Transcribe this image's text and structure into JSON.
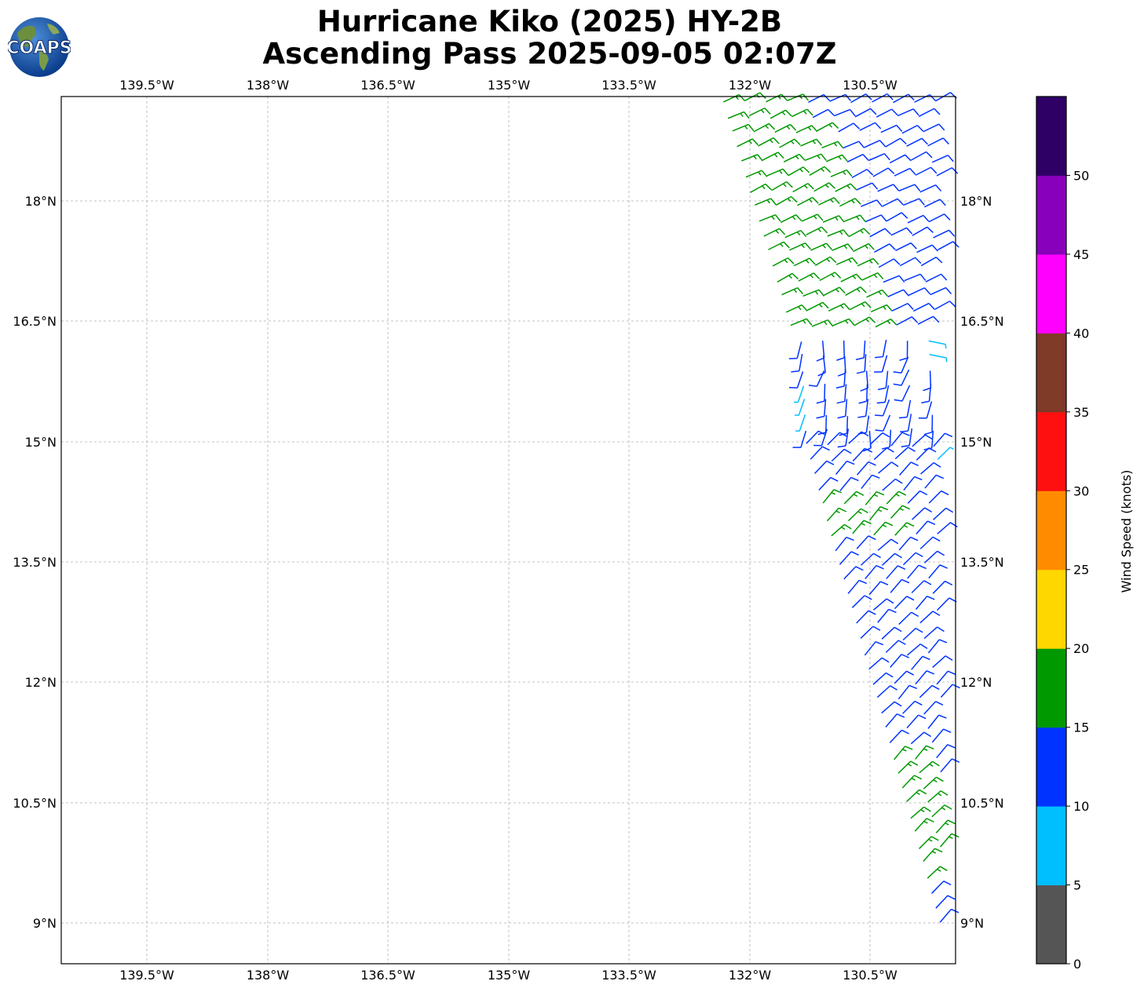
{
  "title_line1": "Hurricane Kiko (2025) HY-2B",
  "title_line2": "Ascending Pass 2025-09-05 02:07Z",
  "logo_text": "COAPS",
  "map": {
    "lon_labels": [
      "139.5°W",
      "138°W",
      "136.5°W",
      "135°W",
      "133.5°W",
      "132°W",
      "130.5°W"
    ],
    "lat_labels": [
      "18°N",
      "16.5°N",
      "15°N",
      "13.5°N",
      "12°N",
      "10.5°N",
      "9°N"
    ],
    "grid": true
  },
  "colorbar": {
    "label": "Wind Speed (knots)",
    "tick_labels": [
      "0",
      "5",
      "10",
      "15",
      "20",
      "25",
      "30",
      "35",
      "40",
      "45",
      "50"
    ],
    "bins": [
      {
        "range": [
          0,
          5
        ],
        "color": "#555555"
      },
      {
        "range": [
          5,
          10
        ],
        "color": "#00bfff"
      },
      {
        "range": [
          10,
          15
        ],
        "color": "#0033ff"
      },
      {
        "range": [
          15,
          20
        ],
        "color": "#009900"
      },
      {
        "range": [
          20,
          25
        ],
        "color": "#ffd700"
      },
      {
        "range": [
          25,
          30
        ],
        "color": "#ff8c00"
      },
      {
        "range": [
          30,
          35
        ],
        "color": "#ff1010"
      },
      {
        "range": [
          35,
          40
        ],
        "color": "#7f3a28"
      },
      {
        "range": [
          40,
          45
        ],
        "color": "#ff00ff"
      },
      {
        "range": [
          45,
          50
        ],
        "color": "#8800bb"
      },
      {
        "range": [
          50,
          55
        ],
        "color": "#2e0066"
      }
    ]
  },
  "wind_regions": [
    {
      "name": "north-band",
      "speed_kt": 12,
      "direction": "northeasterly"
    },
    {
      "name": "north-west-band",
      "speed_kt": 17,
      "direction": "northeasterly"
    },
    {
      "name": "central-light",
      "speed_kt": 11,
      "direction": "northerly"
    },
    {
      "name": "light-patches",
      "speed_kt": 8,
      "direction": "variable"
    },
    {
      "name": "south-band",
      "speed_kt": 12,
      "direction": "northeasterly"
    }
  ]
}
